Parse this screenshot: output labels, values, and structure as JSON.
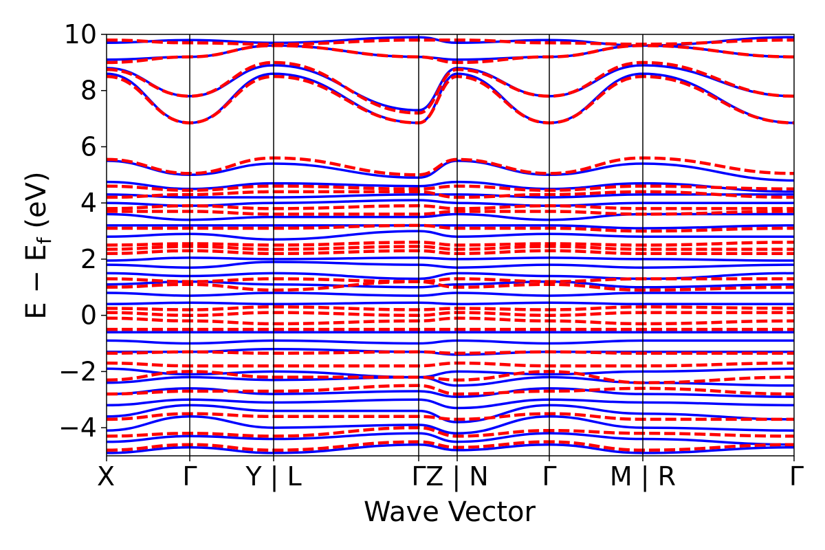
{
  "chart_data": {
    "type": "line",
    "title": "",
    "xlabel": "Wave Vector",
    "ylabel": "E − E",
    "ylabel_sub": "f",
    "ylabel_unit": " (eV)",
    "ylim": [
      -5,
      10
    ],
    "yticks": [
      -4,
      -2,
      0,
      2,
      4,
      6,
      8,
      10
    ],
    "ytick_labels": [
      "−4",
      "−2",
      "0",
      "2",
      "4",
      "6",
      "8",
      "10"
    ],
    "grid": false,
    "legend": "none",
    "colors": {
      "blue_bands": "#0000ff",
      "red_bands": "#ff0000",
      "kpath_lines": "#000000"
    },
    "kpath": {
      "segments": [
        {
          "from": "X",
          "to": "Γ"
        },
        {
          "from": "Γ",
          "to": "Y"
        },
        {
          "from": "L",
          "to": "Γ"
        },
        {
          "from": "Γ",
          "to": "Z"
        },
        {
          "from": "N",
          "to": "Γ"
        },
        {
          "from": "Γ",
          "to": "M"
        },
        {
          "from": "R",
          "to": "Γ"
        }
      ],
      "tick_labels": [
        "X",
        "Γ",
        "Y | L",
        "Γ",
        "Z | N",
        "Γ",
        "M | R",
        "Γ"
      ]
    },
    "series": [
      {
        "style": "solid",
        "color": "#0000ff",
        "band_energies": [
          [
            -4.9,
            -4.7,
            -4.9,
            -4.6,
            -4.8,
            -4.6,
            -4.9,
            -4.7
          ],
          [
            -4.5,
            -4.3,
            -4.4,
            -4.2,
            -4.5,
            -4.2,
            -4.4,
            -4.6
          ],
          [
            -4.1,
            -3.6,
            -4.0,
            -3.9,
            -4.2,
            -3.6,
            -4.0,
            -4.1
          ],
          [
            -3.6,
            -3.2,
            -3.4,
            -3.4,
            -3.8,
            -3.2,
            -3.5,
            -3.7
          ],
          [
            -3.2,
            -3.0,
            -3.1,
            -3.0,
            -3.3,
            -3.0,
            -3.1,
            -3.2
          ],
          [
            -2.8,
            -2.6,
            -2.8,
            -2.7,
            -2.9,
            -2.6,
            -2.8,
            -2.9
          ],
          [
            -2.4,
            -2.2,
            -2.3,
            -2.2,
            -2.5,
            -2.2,
            -2.4,
            -2.5
          ],
          [
            -1.9,
            -2.1,
            -2.0,
            -2.2,
            -2.0,
            -2.1,
            -2.0,
            -1.9
          ],
          [
            -1.3,
            -1.3,
            -1.2,
            -1.3,
            -1.4,
            -1.3,
            -1.3,
            -1.3
          ],
          [
            -0.9,
            -1.0,
            -0.9,
            -1.0,
            -0.9,
            -1.0,
            -0.9,
            -0.9
          ],
          [
            -0.6,
            -0.6,
            -0.6,
            -0.6,
            -0.6,
            -0.6,
            -0.6,
            -0.6
          ],
          [
            0.4,
            0.45,
            0.4,
            0.45,
            0.4,
            0.45,
            0.4,
            0.4
          ],
          [
            0.8,
            0.7,
            0.8,
            0.7,
            0.8,
            0.7,
            0.8,
            0.8
          ],
          [
            1.1,
            1.2,
            1.1,
            1.0,
            1.1,
            1.2,
            1.0,
            1.1
          ],
          [
            1.5,
            1.4,
            1.5,
            1.3,
            1.5,
            1.4,
            1.3,
            1.5
          ],
          [
            1.8,
            1.7,
            1.9,
            1.8,
            1.7,
            1.8,
            1.7,
            1.8
          ],
          [
            1.95,
            2.05,
            2.0,
            2.05,
            2.0,
            2.05,
            2.0,
            1.95
          ],
          [
            2.8,
            2.9,
            2.7,
            3.0,
            2.8,
            2.9,
            2.8,
            2.8
          ],
          [
            3.2,
            3.2,
            3.2,
            3.2,
            3.2,
            3.2,
            3.1,
            3.2
          ],
          [
            3.6,
            3.4,
            3.5,
            3.5,
            3.6,
            3.4,
            3.6,
            3.6
          ],
          [
            4.0,
            3.9,
            4.0,
            4.1,
            4.0,
            3.9,
            4.0,
            4.0
          ],
          [
            4.3,
            4.2,
            4.2,
            4.3,
            4.3,
            4.2,
            4.3,
            4.3
          ],
          [
            4.75,
            4.5,
            4.7,
            4.6,
            4.75,
            4.5,
            4.7,
            4.4
          ],
          [
            5.5,
            5.0,
            5.4,
            4.9,
            5.5,
            5.0,
            5.4,
            4.8
          ],
          [
            8.6,
            6.85,
            8.6,
            6.85,
            8.6,
            6.85,
            8.6,
            6.85
          ],
          [
            8.8,
            7.8,
            8.9,
            7.3,
            8.8,
            7.8,
            8.9,
            7.8
          ],
          [
            9.1,
            9.2,
            9.6,
            9.2,
            9.1,
            9.2,
            9.6,
            9.2
          ],
          [
            9.7,
            9.8,
            9.7,
            9.9,
            9.7,
            9.8,
            9.6,
            9.9
          ]
        ]
      },
      {
        "style": "dashed",
        "color": "#ff0000",
        "band_energies": [
          [
            -4.8,
            -4.6,
            -4.8,
            -4.5,
            -4.7,
            -4.5,
            -4.8,
            -4.6
          ],
          [
            -4.3,
            -4.2,
            -4.3,
            -4.0,
            -4.3,
            -4.1,
            -4.2,
            -4.3
          ],
          [
            -3.7,
            -3.5,
            -3.6,
            -3.6,
            -3.7,
            -3.5,
            -3.7,
            -3.7
          ],
          [
            -2.8,
            -2.7,
            -2.7,
            -2.5,
            -2.8,
            -2.7,
            -2.6,
            -2.8
          ],
          [
            -2.3,
            -2.0,
            -2.2,
            -2.2,
            -2.3,
            -2.0,
            -2.4,
            -2.2
          ],
          [
            -1.7,
            -1.8,
            -1.8,
            -1.8,
            -1.7,
            -1.8,
            -1.8,
            -1.7
          ],
          [
            -1.35,
            -1.3,
            -1.35,
            -1.3,
            -1.35,
            -1.3,
            -1.35,
            -1.35
          ],
          [
            -0.5,
            -0.5,
            -0.5,
            -0.5,
            -0.5,
            -0.5,
            -0.5,
            -0.5
          ],
          [
            -0.1,
            -0.2,
            -0.3,
            -0.2,
            -0.1,
            -0.2,
            -0.3,
            -0.2
          ],
          [
            0.1,
            0.0,
            0.1,
            0.0,
            0.1,
            0.0,
            0.1,
            0.1
          ],
          [
            0.25,
            0.2,
            0.3,
            0.2,
            0.25,
            0.2,
            0.3,
            0.25
          ],
          [
            1.0,
            1.1,
            0.9,
            1.2,
            1.0,
            1.1,
            0.9,
            1.0
          ],
          [
            1.3,
            1.2,
            1.3,
            1.2,
            1.3,
            1.2,
            1.3,
            1.3
          ],
          [
            2.2,
            2.3,
            2.2,
            2.3,
            2.2,
            2.3,
            2.2,
            2.2
          ],
          [
            2.35,
            2.45,
            2.35,
            2.45,
            2.35,
            2.45,
            2.35,
            2.35
          ],
          [
            2.5,
            2.55,
            2.5,
            2.6,
            2.5,
            2.55,
            2.5,
            2.6
          ],
          [
            3.1,
            3.1,
            3.1,
            3.2,
            3.1,
            3.1,
            3.0,
            3.1
          ],
          [
            3.7,
            3.7,
            3.6,
            3.6,
            3.7,
            3.7,
            3.6,
            3.7
          ],
          [
            3.8,
            3.9,
            3.8,
            3.9,
            3.8,
            3.9,
            3.8,
            3.8
          ],
          [
            4.2,
            4.3,
            4.4,
            4.4,
            4.2,
            4.3,
            4.4,
            4.2
          ],
          [
            4.6,
            4.45,
            4.6,
            4.5,
            4.6,
            4.45,
            4.6,
            4.5
          ],
          [
            5.55,
            5.05,
            5.6,
            5.0,
            5.55,
            5.05,
            5.6,
            5.05
          ],
          [
            8.5,
            6.85,
            8.5,
            6.85,
            8.5,
            6.85,
            8.5,
            6.85
          ],
          [
            8.75,
            7.8,
            9.0,
            7.2,
            8.75,
            7.8,
            9.0,
            7.8
          ],
          [
            9.0,
            9.2,
            9.6,
            9.2,
            9.0,
            9.2,
            9.6,
            9.2
          ],
          [
            9.8,
            9.7,
            9.65,
            9.8,
            9.8,
            9.7,
            9.65,
            9.8
          ]
        ]
      }
    ]
  }
}
